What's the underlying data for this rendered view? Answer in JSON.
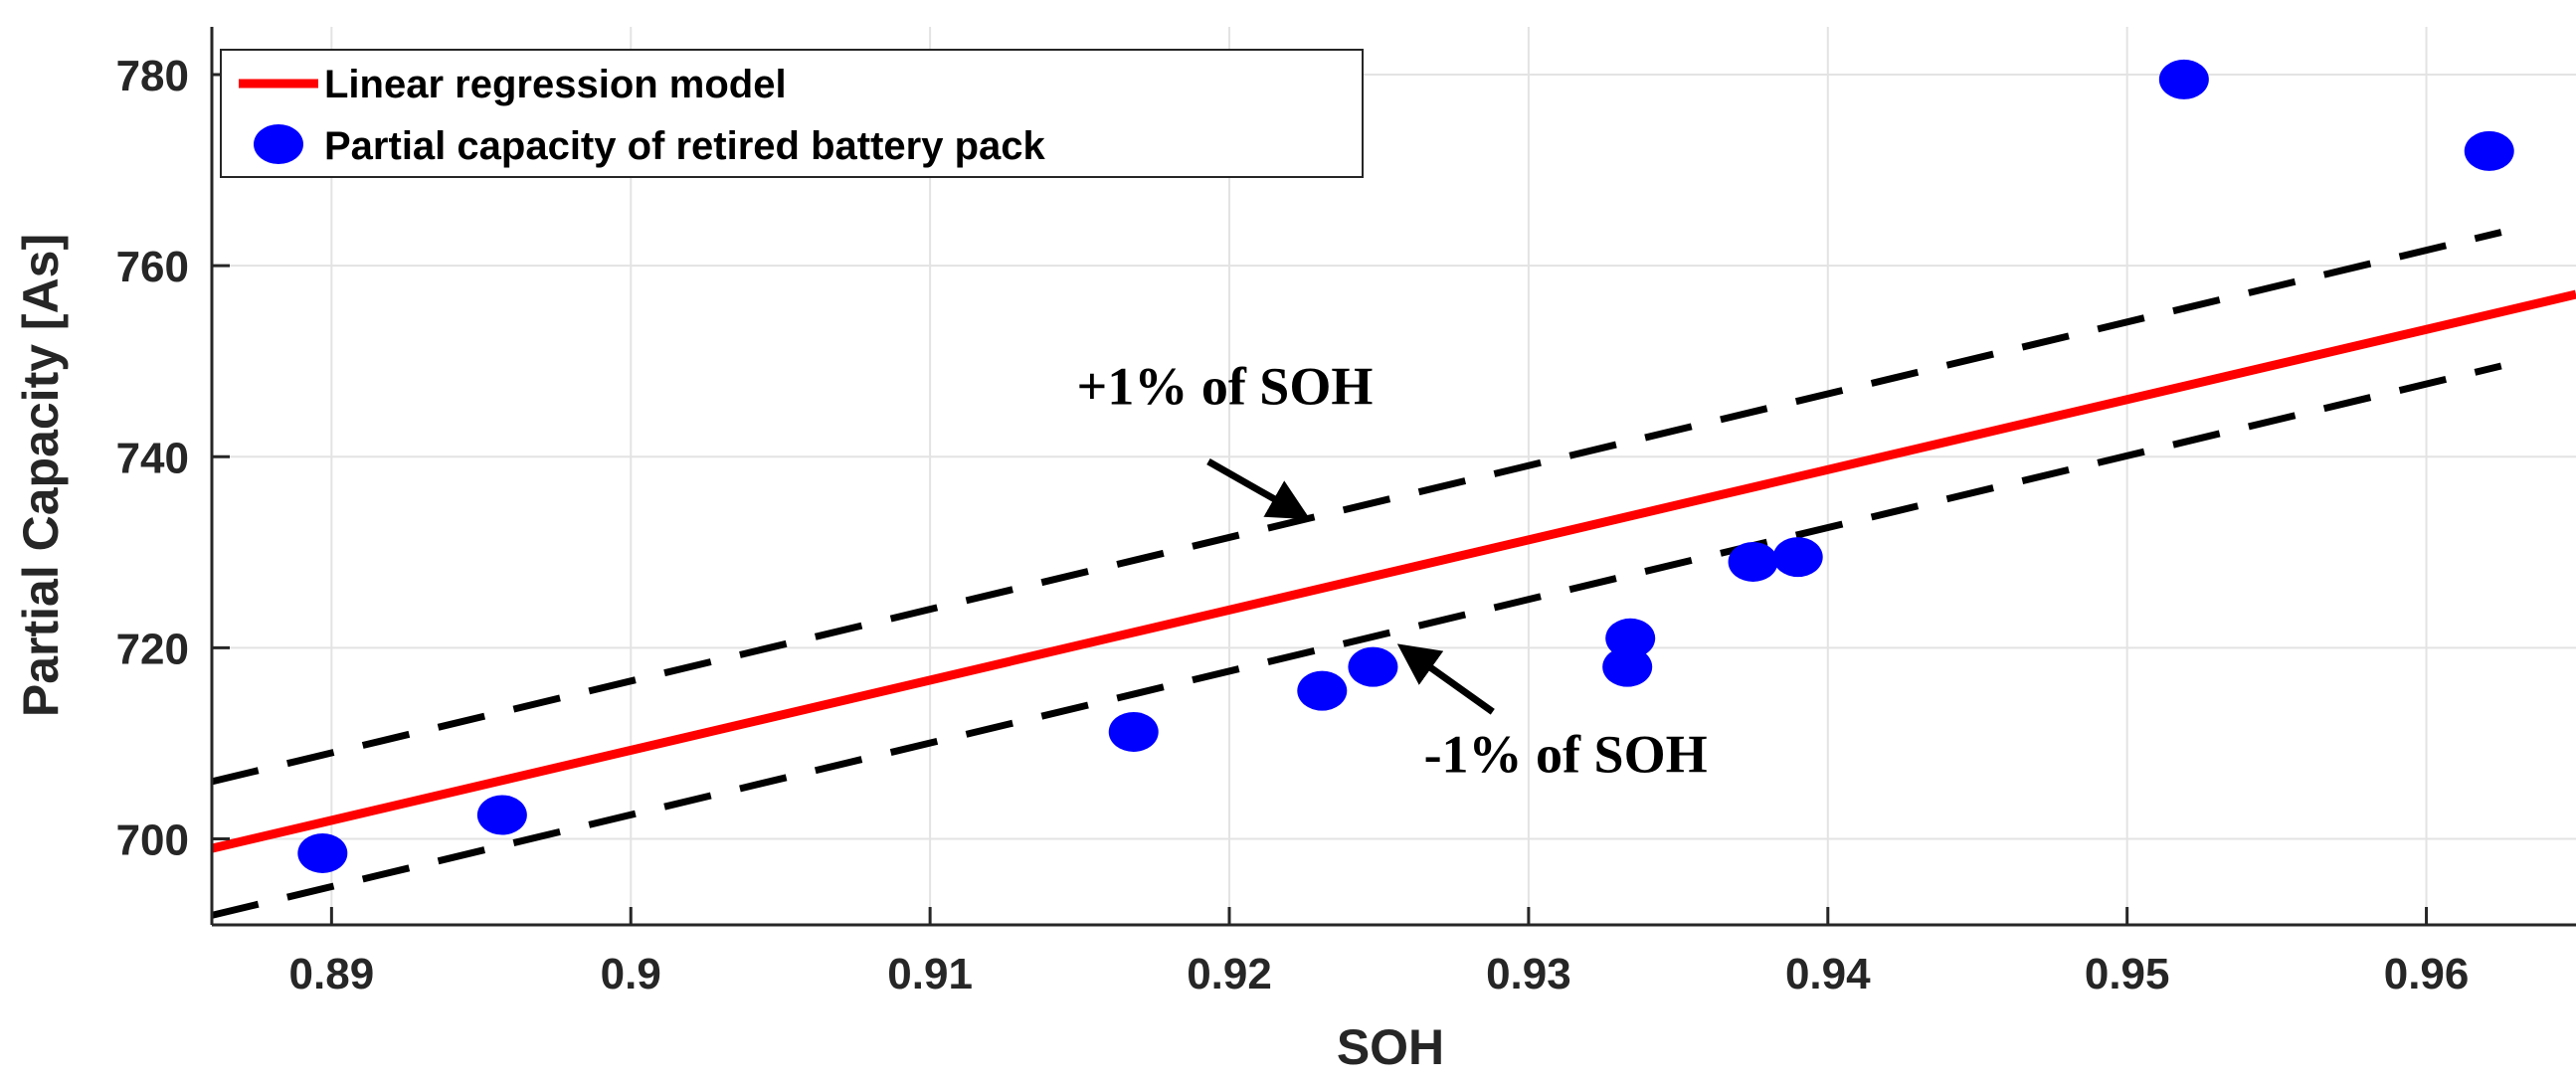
{
  "chart_data": {
    "type": "scatter",
    "title": "",
    "xlabel": "SOH",
    "ylabel": "Partial Capacity [As]",
    "xlim": [
      0.886,
      0.965
    ],
    "ylim": [
      691,
      785
    ],
    "xticks": [
      0.89,
      0.9,
      0.91,
      0.92,
      0.93,
      0.94,
      0.95,
      0.96
    ],
    "xtick_labels": [
      "0.89",
      "0.9",
      "0.91",
      "0.92",
      "0.93",
      "0.94",
      "0.95",
      "0.96"
    ],
    "yticks": [
      700,
      720,
      740,
      760,
      780
    ],
    "ytick_labels": [
      "700",
      "720",
      "740",
      "760",
      "780"
    ],
    "grid": true,
    "legend_position": "top-left",
    "series": [
      {
        "name": "Linear regression model",
        "kind": "line",
        "color": "#ff0000",
        "x": [
          0.886,
          0.965
        ],
        "y": [
          699,
          757
        ]
      },
      {
        "name": "Partial capacity of retired battery pack",
        "kind": "scatter",
        "color": "#0000ff",
        "points": [
          [
            0.8897,
            698.5
          ],
          [
            0.8957,
            702.5
          ],
          [
            0.9168,
            711.2
          ],
          [
            0.9231,
            715.5
          ],
          [
            0.9248,
            718.0
          ],
          [
            0.9333,
            718.0
          ],
          [
            0.9334,
            721.0
          ],
          [
            0.9375,
            729.0
          ],
          [
            0.939,
            729.5
          ],
          [
            0.9519,
            779.5
          ],
          [
            0.9621,
            772.0
          ]
        ]
      },
      {
        "name": "+1% of SOH",
        "kind": "dashed",
        "color": "#000000",
        "x": [
          0.886,
          0.9625
        ],
        "y": [
          706,
          763.5
        ]
      },
      {
        "name": "-1% of SOH",
        "kind": "dashed",
        "color": "#000000",
        "x": [
          0.886,
          0.9625
        ],
        "y": [
          692,
          749.5
        ]
      }
    ],
    "annotations": [
      {
        "text": "+1% of SOH",
        "text_at": [
          0.9149,
          745.5
        ],
        "arrow_from": [
          0.9193,
          739.5
        ],
        "arrow_to": [
          0.9225,
          733.8
        ]
      },
      {
        "text": "-1% of SOH",
        "text_at": [
          0.9265,
          707.0
        ],
        "arrow_from": [
          0.9288,
          713.3
        ],
        "arrow_to": [
          0.9258,
          720.0
        ]
      }
    ]
  }
}
